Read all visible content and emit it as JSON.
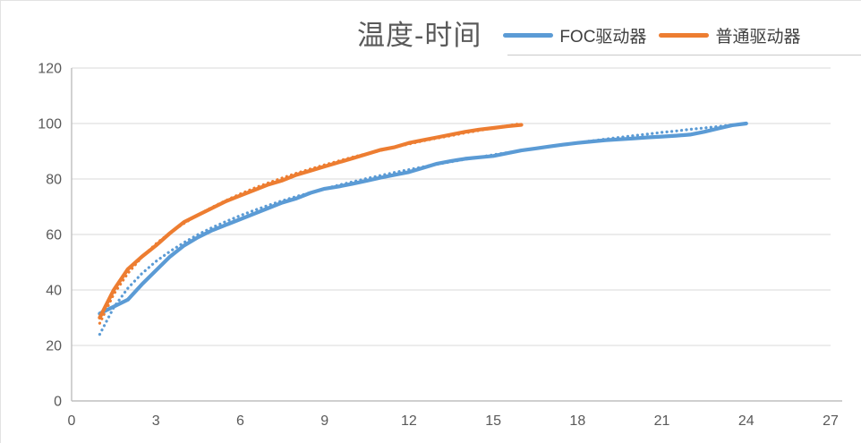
{
  "chart": {
    "title": "温度-时间",
    "legend": [
      {
        "label": "FOC驱动器",
        "color": "#5B9BD5"
      },
      {
        "label": "普通驱动器",
        "color": "#ED7D31"
      }
    ]
  },
  "chart_data": {
    "type": "line",
    "title": "温度-时间",
    "xlabel": "",
    "ylabel": "",
    "xlim": [
      0,
      27
    ],
    "ylim": [
      0,
      120
    ],
    "xticks": [
      0,
      3,
      6,
      9,
      12,
      15,
      18,
      21,
      24,
      27
    ],
    "yticks": [
      0,
      20,
      40,
      60,
      80,
      100,
      120
    ],
    "grid": "horizontal",
    "legend_position": "top-right",
    "theme": {
      "grid_color": "#d9d9d9",
      "axis_color": "#bfbfbf",
      "tick_color": "#595959",
      "background": "#ffffff"
    },
    "series": [
      {
        "name": "FOC驱动器",
        "color": "#5B9BD5",
        "style": "solid",
        "width": 4.2,
        "x": [
          1,
          1.5,
          2,
          2.5,
          3,
          3.5,
          4,
          4.5,
          5,
          5.5,
          6,
          6.5,
          7,
          7.5,
          8,
          8.5,
          9,
          9.5,
          10,
          10.5,
          11,
          11.5,
          12,
          12.5,
          13,
          13.5,
          14,
          14.5,
          15,
          15.5,
          16,
          16.5,
          17,
          17.5,
          18,
          18.5,
          19,
          19.5,
          20,
          20.5,
          21,
          21.5,
          22,
          22.5,
          23,
          23.5,
          24
        ],
        "y": [
          31.5,
          34,
          36.5,
          42,
          47,
          52,
          56,
          59,
          61.5,
          63.5,
          65.5,
          67.5,
          69.5,
          71.5,
          73,
          75,
          76.5,
          77.3,
          78.3,
          79.4,
          80.5,
          81.5,
          82.5,
          84,
          85.5,
          86.5,
          87.3,
          87.8,
          88.3,
          89.3,
          90.3,
          91,
          91.7,
          92.4,
          93,
          93.5,
          94,
          94.3,
          94.6,
          95,
          95.3,
          95.6,
          96,
          97,
          98.2,
          99.4,
          100
        ]
      },
      {
        "name": "普通驱动器",
        "color": "#ED7D31",
        "style": "solid",
        "width": 4.2,
        "x": [
          1,
          1.5,
          2,
          2.5,
          3,
          3.5,
          4,
          4.5,
          5,
          5.5,
          6,
          6.5,
          7,
          7.5,
          8,
          8.5,
          9,
          9.5,
          10,
          10.5,
          11,
          11.5,
          12,
          12.5,
          13,
          13.5,
          14,
          14.5,
          15,
          15.5,
          16
        ],
        "y": [
          30,
          40,
          47.5,
          52,
          56,
          60.5,
          64.5,
          67,
          69.5,
          72,
          74,
          76,
          78,
          79.5,
          81.5,
          83,
          84.5,
          86,
          87.5,
          89,
          90.5,
          91.5,
          93,
          94,
          95,
          96,
          97,
          97.8,
          98.4,
          99,
          99.5
        ]
      },
      {
        "name": "FOC驱动器趋势线",
        "color": "#5B9BD5",
        "style": "dotted",
        "width": 3.2,
        "x": [
          1,
          1.5,
          2,
          2.5,
          3,
          3.5,
          4,
          4.5,
          5,
          5.5,
          6,
          6.5,
          7,
          7.5,
          8,
          8.5,
          9,
          9.5,
          10,
          10.5,
          11,
          11.5,
          12,
          12.5,
          13,
          13.5,
          14,
          14.5,
          15,
          15.5,
          16,
          16.5,
          17,
          17.5,
          18,
          18.5,
          19,
          19.5,
          20,
          20.5,
          21,
          21.5,
          22,
          22.5,
          23,
          23.5,
          24
        ],
        "y": [
          24,
          33.7,
          40.6,
          45.9,
          50.3,
          53.9,
          57.1,
          60,
          62.5,
          64.7,
          66.8,
          68.7,
          70.5,
          72.2,
          73.7,
          75.1,
          76.5,
          77.8,
          79,
          80.2,
          81.3,
          82.4,
          83.4,
          84.4,
          85.3,
          86.2,
          87.1,
          87.9,
          88.7,
          89.5,
          90.3,
          91,
          91.7,
          92.4,
          93.1,
          93.7,
          94.4,
          95,
          95.6,
          96.2,
          96.8,
          97.3,
          97.9,
          98.4,
          98.9,
          99.5,
          100
        ]
      },
      {
        "name": "普通驱动器趋势线",
        "color": "#ED7D31",
        "style": "dotted",
        "width": 3.2,
        "x": [
          1,
          1.5,
          2,
          2.5,
          3,
          3.5,
          4,
          4.5,
          5,
          5.5,
          6,
          6.5,
          7,
          7.5,
          8,
          8.5,
          9,
          9.5,
          10,
          10.5,
          11,
          11.5,
          12,
          12.5,
          13,
          13.5,
          14,
          14.5,
          15,
          15.5,
          16
        ],
        "y": [
          28,
          38.5,
          46,
          51.8,
          56.6,
          60.6,
          64,
          67.1,
          69.8,
          72.3,
          74.6,
          76.7,
          78.6,
          80.4,
          82.1,
          83.6,
          85.1,
          86.5,
          87.9,
          89.1,
          90.3,
          91.5,
          92.6,
          93.7,
          94.7,
          95.6,
          96.6,
          97.5,
          98.4,
          99.2,
          100
        ]
      }
    ]
  }
}
